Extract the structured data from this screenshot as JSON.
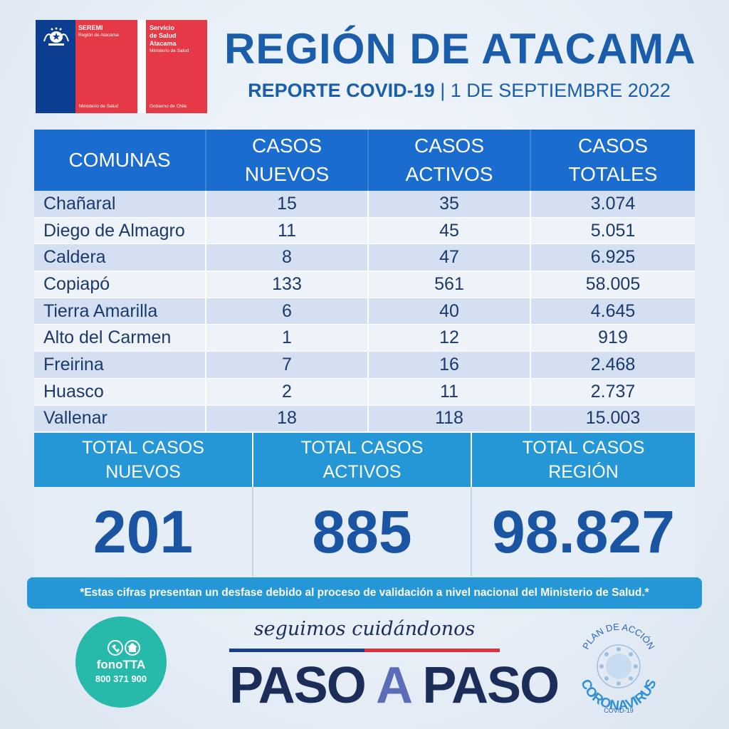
{
  "logo": {
    "org1_title": "SEREMI",
    "org1_region": "Región de Atacama",
    "org1_bottom": "Ministerio de Salud",
    "org2_title_1": "Servicio",
    "org2_title_2": "de Salud",
    "org2_title_3": "Atacama",
    "org2_sub": "Ministerio de Salud",
    "org2_bottom": "Gobierno de Chile"
  },
  "header": {
    "title": "REGIÓN DE ATACAMA",
    "report": "REPORTE COVID-19",
    "separator": " | ",
    "date": "1 DE SEPTIEMBRE 2022"
  },
  "table": {
    "columns": [
      "COMUNAS",
      "CASOS NUEVOS",
      "CASOS ACTIVOS",
      "CASOS TOTALES"
    ],
    "rows": [
      [
        "Chañaral",
        "15",
        "35",
        "3.074"
      ],
      [
        "Diego de Almagro",
        "11",
        "45",
        "5.051"
      ],
      [
        "Caldera",
        "8",
        "47",
        "6.925"
      ],
      [
        "Copiapó",
        "133",
        "561",
        "58.005"
      ],
      [
        "Tierra Amarilla",
        "6",
        "40",
        "4.645"
      ],
      [
        "Alto del Carmen",
        "1",
        "12",
        "919"
      ],
      [
        "Freirina",
        "7",
        "16",
        "2.468"
      ],
      [
        "Huasco",
        "2",
        "11",
        "2.737"
      ],
      [
        "Vallenar",
        "18",
        "118",
        "15.003"
      ]
    ]
  },
  "totals": {
    "labels": [
      "TOTAL CASOS NUEVOS",
      "TOTAL CASOS ACTIVOS",
      "TOTAL CASOS REGIÓN"
    ],
    "values": [
      "201",
      "885",
      "98.827"
    ]
  },
  "note": "*Estas cifras presentan un desfase debido al proceso de validación a nivel nacional del Ministerio de Salud.*",
  "footer": {
    "fono_name": "fonoTTA",
    "fono_phone": "800 371 900",
    "tagline": "seguimos cuidándonos",
    "paso_1": "PASO ",
    "paso_a": "A",
    "paso_2": " PASO",
    "plan_top": "PLAN DE ACCIÓN",
    "plan_main": "CORONAVIRUS",
    "plan_bottom": "COVID-19"
  },
  "colors": {
    "title_blue": "#1a5eab",
    "table_header": "#1b6ccf",
    "totals_header": "#2596d6",
    "gov_red": "#e63946",
    "gov_blue": "#0b3e91",
    "fono_teal": "#27b9a9"
  }
}
